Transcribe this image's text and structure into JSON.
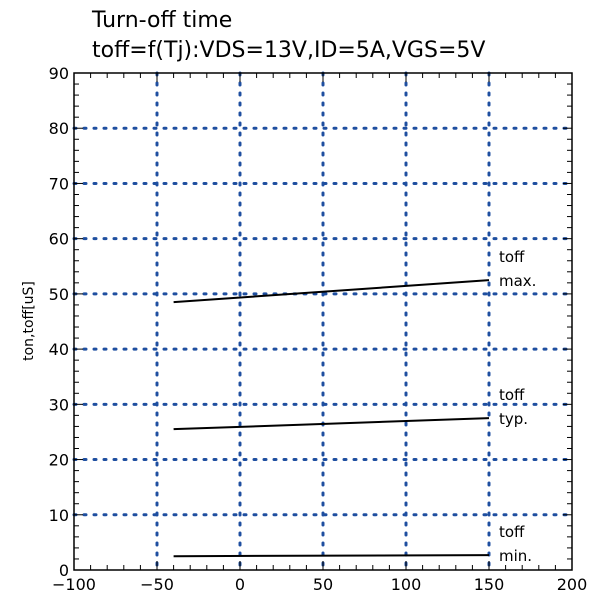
{
  "chart_data": {
    "type": "line",
    "title": "Turn-off time",
    "subtitle": "toff=f(Tj):VDS=13V,ID=5A,VGS=5V",
    "xlabel": "",
    "ylabel": "ton,toff[uS]",
    "xlim": [
      -100,
      200
    ],
    "ylim": [
      0,
      90
    ],
    "xticks": [
      -100,
      -50,
      0,
      50,
      100,
      150,
      200
    ],
    "yticks": [
      0,
      10,
      20,
      30,
      40,
      50,
      60,
      70,
      80,
      90
    ],
    "grid": true,
    "grid_color": "#1f4fa0",
    "line_color": "#000000",
    "series": [
      {
        "x": [
          -40,
          150
        ],
        "y": [
          48.5,
          52.5
        ]
      },
      {
        "x": [
          -40,
          150
        ],
        "y": [
          25.5,
          27.5
        ]
      },
      {
        "x": [
          -40,
          150
        ],
        "y": [
          2.5,
          2.7
        ]
      }
    ],
    "annotations": [
      {
        "line1": "toff",
        "line2": "max.",
        "x": 150,
        "y": 52.5
      },
      {
        "line1": "toff",
        "line2": "typ.",
        "x": 150,
        "y": 27.5
      },
      {
        "line1": "toff",
        "line2": "min.",
        "x": 150,
        "y": 2.7
      }
    ]
  }
}
